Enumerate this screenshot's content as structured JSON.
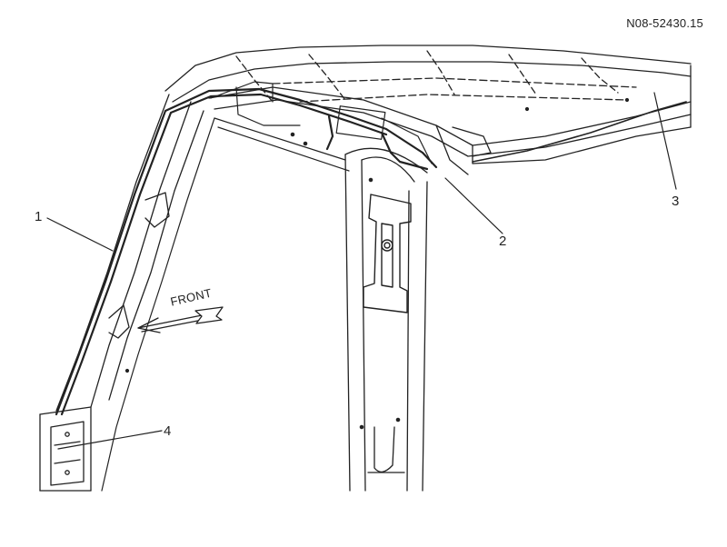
{
  "reference_code": "N08-52430.15",
  "front_label": "FRONT",
  "callouts": {
    "c1": "1",
    "c2": "2",
    "c3": "3",
    "c4": "4"
  },
  "colors": {
    "line": "#222222",
    "background": "#ffffff"
  }
}
